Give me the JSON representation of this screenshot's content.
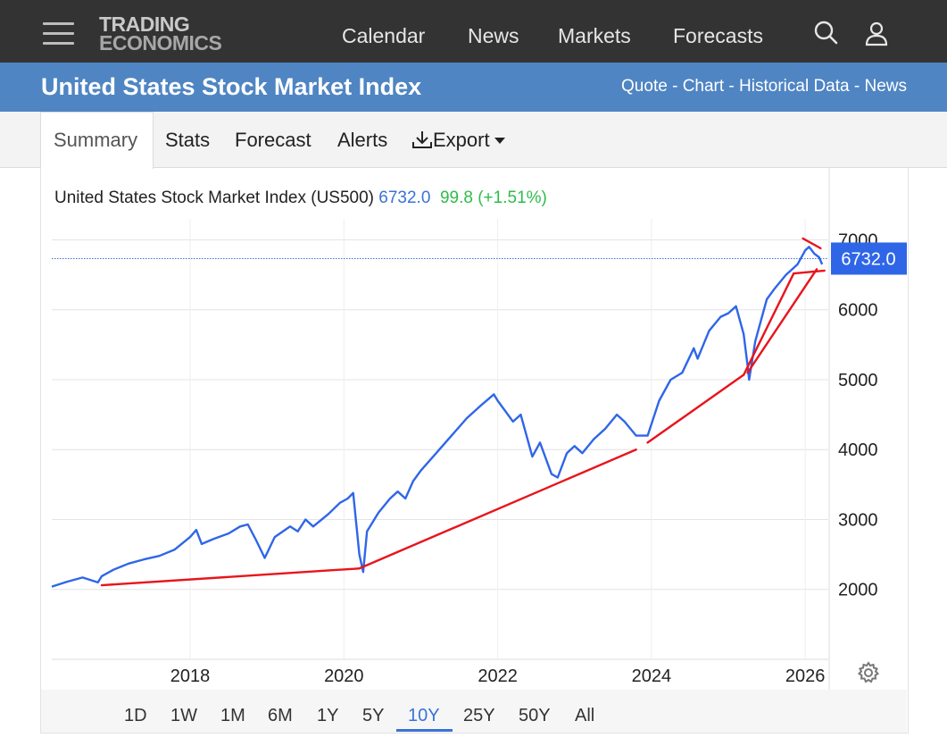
{
  "header": {
    "logo_line1": "TRADING",
    "logo_line2": "ECONOMICS",
    "nav": [
      "Calendar",
      "News",
      "Markets",
      "Forecasts"
    ]
  },
  "title_bar": {
    "title": "United States Stock Market Index",
    "links": [
      "Quote",
      "Chart",
      "Historical Data",
      "News"
    ],
    "separator": " - "
  },
  "tabs": [
    "Summary",
    "Stats",
    "Forecast",
    "Alerts",
    "Export"
  ],
  "chart_header": {
    "name": "United States Stock Market Index (US500)",
    "price": "6732.0",
    "change": "99.8",
    "change_pct": "(+1.51%)"
  },
  "price_badge": "6732.0",
  "ranges": [
    "1D",
    "1W",
    "1M",
    "6M",
    "1Y",
    "5Y",
    "10Y",
    "25Y",
    "50Y",
    "All"
  ],
  "active_range": "10Y",
  "colors": {
    "topbar": "#333333",
    "title_bar": "#4f85c3",
    "series": "#2f66e8",
    "trendlines": "#e8141c",
    "change_positive": "#2ebd4a",
    "accent": "#3a73d6"
  },
  "icons": [
    "hamburger-icon",
    "search-icon",
    "user-icon",
    "download-icon",
    "caret-down-icon",
    "gear-icon"
  ],
  "chart_data": {
    "type": "line",
    "x_ticks": [
      "2018",
      "2020",
      "2022",
      "2024",
      "2026"
    ],
    "y_ticks": [
      2000,
      3000,
      4000,
      5000,
      6000,
      7000
    ],
    "xlim": [
      2016.2,
      2026.3
    ],
    "ylim": [
      1000,
      7300
    ],
    "grid": true,
    "current_value": 6732.0,
    "series": [
      {
        "x": [
          2016.2,
          2016.4,
          2016.6,
          2016.8,
          2016.85,
          2017.0,
          2017.2,
          2017.4,
          2017.6,
          2017.8,
          2018.0,
          2018.08,
          2018.15,
          2018.3,
          2018.5,
          2018.65,
          2018.75,
          2018.85,
          2018.97,
          2019.1,
          2019.3,
          2019.4,
          2019.5,
          2019.6,
          2019.8,
          2019.95,
          2020.05,
          2020.12,
          2020.2,
          2020.25,
          2020.3,
          2020.45,
          2020.6,
          2020.7,
          2020.8,
          2020.9,
          2021.0,
          2021.2,
          2021.4,
          2021.6,
          2021.8,
          2021.95,
          2022.0,
          2022.2,
          2022.3,
          2022.45,
          2022.55,
          2022.7,
          2022.78,
          2022.9,
          2023.0,
          2023.1,
          2023.25,
          2023.4,
          2023.55,
          2023.65,
          2023.8,
          2023.95,
          2024.1,
          2024.25,
          2024.4,
          2024.55,
          2024.6,
          2024.75,
          2024.9,
          2025.0,
          2025.1,
          2025.2,
          2025.25,
          2025.27,
          2025.35,
          2025.5,
          2025.6,
          2025.75,
          2025.9,
          2026.0,
          2026.05,
          2026.12,
          2026.18,
          2026.22
        ],
        "y": [
          2040,
          2110,
          2170,
          2100,
          2190,
          2280,
          2370,
          2430,
          2480,
          2570,
          2750,
          2850,
          2650,
          2720,
          2800,
          2900,
          2930,
          2720,
          2450,
          2750,
          2900,
          2830,
          3000,
          2900,
          3080,
          3240,
          3300,
          3380,
          2500,
          2250,
          2830,
          3100,
          3300,
          3400,
          3300,
          3550,
          3700,
          3950,
          4200,
          4450,
          4650,
          4790,
          4700,
          4400,
          4500,
          3900,
          4100,
          3650,
          3600,
          3950,
          4050,
          3950,
          4150,
          4300,
          4500,
          4400,
          4200,
          4200,
          4700,
          5000,
          5100,
          5450,
          5300,
          5700,
          5900,
          5950,
          6050,
          5650,
          5200,
          5000,
          5550,
          6150,
          6300,
          6500,
          6650,
          6850,
          6900,
          6800,
          6750,
          6650
        ]
      }
    ],
    "trendlines": [
      {
        "x": [
          2016.85,
          2020.2
        ],
        "y": [
          2060,
          2300
        ]
      },
      {
        "x": [
          2020.2,
          2023.8
        ],
        "y": [
          2300,
          4000
        ]
      },
      {
        "x": [
          2023.95,
          2025.2
        ],
        "y": [
          4100,
          5070
        ]
      },
      {
        "x": [
          2025.2,
          2025.85
        ],
        "y": [
          5070,
          6520
        ]
      },
      {
        "x": [
          2025.25,
          2026.15
        ],
        "y": [
          5100,
          6580
        ]
      },
      {
        "x": [
          2025.85,
          2026.25
        ],
        "y": [
          6520,
          6560
        ]
      },
      {
        "x": [
          2025.97,
          2026.2
        ],
        "y": [
          7020,
          6880
        ]
      }
    ]
  }
}
